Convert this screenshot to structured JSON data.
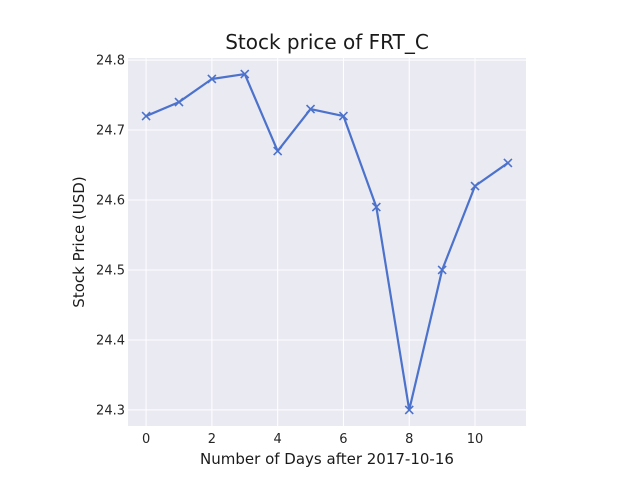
{
  "chart_data": {
    "type": "line",
    "title": "Stock price of FRT_C",
    "xlabel": "Number of Days after 2017-10-16",
    "ylabel": "Stock Price (USD)",
    "x": [
      0,
      1,
      2,
      3,
      4,
      5,
      6,
      7,
      8,
      9,
      10,
      11
    ],
    "series": [
      {
        "values": [
          24.72,
          24.74,
          24.773,
          24.78,
          24.67,
          24.73,
          24.72,
          24.59,
          24.3,
          24.5,
          24.62,
          24.653
        ]
      }
    ],
    "xlim": [
      -0.55,
      11.55
    ],
    "ylim": [
      24.277,
      24.803
    ],
    "xticks": [
      0,
      2,
      4,
      6,
      8,
      10
    ],
    "xtick_labels": [
      "0",
      "2",
      "4",
      "6",
      "8",
      "10"
    ],
    "yticks": [
      24.3,
      24.4,
      24.5,
      24.6,
      24.7,
      24.8
    ],
    "ytick_labels": [
      "24.3",
      "24.4",
      "24.5",
      "24.6",
      "24.7",
      "24.8"
    ],
    "grid": true,
    "marker": "x",
    "colors": {
      "line": "#4c72cc",
      "plot_background": "#eaeaf2",
      "grid": "#ffffff"
    }
  }
}
